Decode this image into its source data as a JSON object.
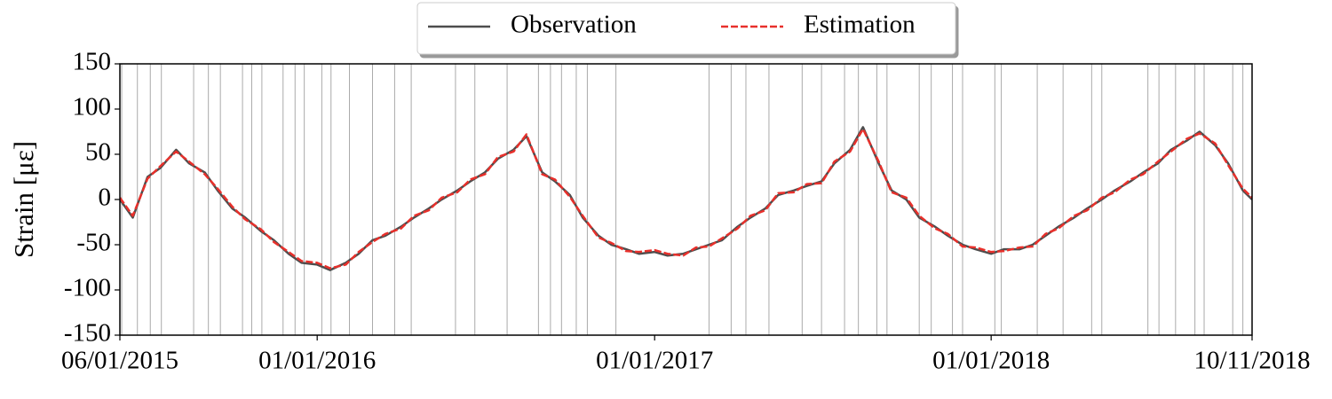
{
  "chart_data": {
    "type": "line",
    "y_label": "Strain [με]",
    "x": [
      "2015-06-01",
      "2015-06-15",
      "2015-07-01",
      "2015-07-15",
      "2015-08-01",
      "2015-08-15",
      "2015-09-01",
      "2015-09-15",
      "2015-10-01",
      "2015-10-15",
      "2015-11-01",
      "2015-11-15",
      "2015-12-01",
      "2015-12-15",
      "2016-01-01",
      "2016-01-15",
      "2016-02-01",
      "2016-02-15",
      "2016-03-01",
      "2016-03-15",
      "2016-04-01",
      "2016-04-15",
      "2016-05-01",
      "2016-05-15",
      "2016-06-01",
      "2016-06-15",
      "2016-07-01",
      "2016-07-15",
      "2016-08-01",
      "2016-08-15",
      "2016-09-01",
      "2016-09-15",
      "2016-10-01",
      "2016-10-15",
      "2016-11-01",
      "2016-11-15",
      "2016-12-01",
      "2016-12-15",
      "2017-01-01",
      "2017-01-15",
      "2017-02-01",
      "2017-02-15",
      "2017-03-01",
      "2017-03-15",
      "2017-04-01",
      "2017-04-15",
      "2017-05-01",
      "2017-05-15",
      "2017-06-01",
      "2017-06-15",
      "2017-07-01",
      "2017-07-15",
      "2017-08-01",
      "2017-08-15",
      "2017-09-01",
      "2017-09-15",
      "2017-10-01",
      "2017-10-15",
      "2017-11-01",
      "2017-11-15",
      "2017-12-01",
      "2017-12-15",
      "2018-01-01",
      "2018-01-15",
      "2018-02-01",
      "2018-02-15",
      "2018-03-01",
      "2018-03-15",
      "2018-04-01",
      "2018-04-15",
      "2018-05-01",
      "2018-05-15",
      "2018-06-01",
      "2018-06-15",
      "2018-07-01",
      "2018-07-15",
      "2018-08-01",
      "2018-08-15",
      "2018-09-01",
      "2018-09-15",
      "2018-10-01",
      "2018-10-11"
    ],
    "series": [
      {
        "name": "Observation",
        "color": "#4d4d4d",
        "dashed": false,
        "values": [
          0,
          -20,
          25,
          35,
          55,
          40,
          30,
          10,
          -10,
          -20,
          -35,
          -45,
          -60,
          -70,
          -72,
          -78,
          -70,
          -60,
          -45,
          -40,
          -30,
          -20,
          -10,
          0,
          10,
          20,
          30,
          45,
          55,
          70,
          30,
          20,
          5,
          -20,
          -40,
          -50,
          -55,
          -60,
          -58,
          -62,
          -60,
          -55,
          -50,
          -45,
          -30,
          -20,
          -10,
          5,
          10,
          15,
          20,
          40,
          55,
          80,
          40,
          10,
          0,
          -20,
          -30,
          -40,
          -50,
          -55,
          -60,
          -55,
          -55,
          -50,
          -40,
          -30,
          -20,
          -10,
          0,
          10,
          20,
          30,
          40,
          55,
          65,
          75,
          60,
          40,
          10,
          0
        ]
      },
      {
        "name": "Estimation",
        "color": "#e8302b",
        "dashed": true,
        "values": [
          2,
          -18,
          23,
          37,
          53,
          42,
          28,
          12,
          -8,
          -22,
          -33,
          -47,
          -58,
          -68,
          -70,
          -76,
          -72,
          -58,
          -47,
          -38,
          -32,
          -18,
          -12,
          2,
          8,
          22,
          28,
          47,
          53,
          72,
          28,
          22,
          3,
          -18,
          -42,
          -48,
          -57,
          -58,
          -56,
          -60,
          -62,
          -53,
          -52,
          -43,
          -32,
          -18,
          -12,
          7,
          8,
          17,
          18,
          42,
          53,
          78,
          42,
          8,
          2,
          -18,
          -32,
          -38,
          -52,
          -53,
          -58,
          -57,
          -53,
          -52,
          -38,
          -32,
          -18,
          -12,
          2,
          8,
          22,
          28,
          42,
          53,
          67,
          73,
          62,
          38,
          12,
          2
        ]
      }
    ],
    "event_dates": [
      "2015-06-03",
      "2015-06-20",
      "2015-07-04",
      "2015-07-16",
      "2015-08-20",
      "2015-09-05",
      "2015-09-18",
      "2015-10-12",
      "2015-10-22",
      "2015-11-02",
      "2015-11-25",
      "2015-12-08",
      "2015-12-18",
      "2016-01-06",
      "2016-01-16",
      "2016-02-05",
      "2016-03-01",
      "2016-03-25",
      "2016-04-12",
      "2016-05-30",
      "2016-06-20",
      "2016-07-25",
      "2016-08-28",
      "2016-09-10",
      "2016-09-22",
      "2016-10-08",
      "2016-10-20",
      "2016-11-20",
      "2017-03-01",
      "2017-03-25",
      "2017-04-10",
      "2017-05-05",
      "2017-06-10",
      "2017-07-01",
      "2017-07-26",
      "2017-08-10",
      "2017-08-30",
      "2017-09-10",
      "2017-10-15",
      "2017-10-28",
      "2017-11-20",
      "2017-12-01",
      "2018-01-05",
      "2018-01-12",
      "2018-02-20",
      "2018-03-20",
      "2018-04-20",
      "2018-05-01",
      "2018-06-20",
      "2018-07-02",
      "2018-07-20",
      "2018-08-10",
      "2018-08-20",
      "2018-09-20",
      "2018-10-01"
    ],
    "xlim": [
      "2015-06-01",
      "2018-10-11"
    ],
    "xticks": [
      {
        "value": "2015-06-01",
        "label": "06/01/2015"
      },
      {
        "value": "2016-01-01",
        "label": "01/01/2016"
      },
      {
        "value": "2017-01-01",
        "label": "01/01/2017"
      },
      {
        "value": "2018-01-01",
        "label": "01/01/2018"
      },
      {
        "value": "2018-10-11",
        "label": "10/11/2018"
      }
    ],
    "ylim": [
      -150,
      150
    ],
    "yticks": [
      -150,
      -100,
      -50,
      0,
      50,
      100,
      150
    ],
    "legend": "top"
  }
}
